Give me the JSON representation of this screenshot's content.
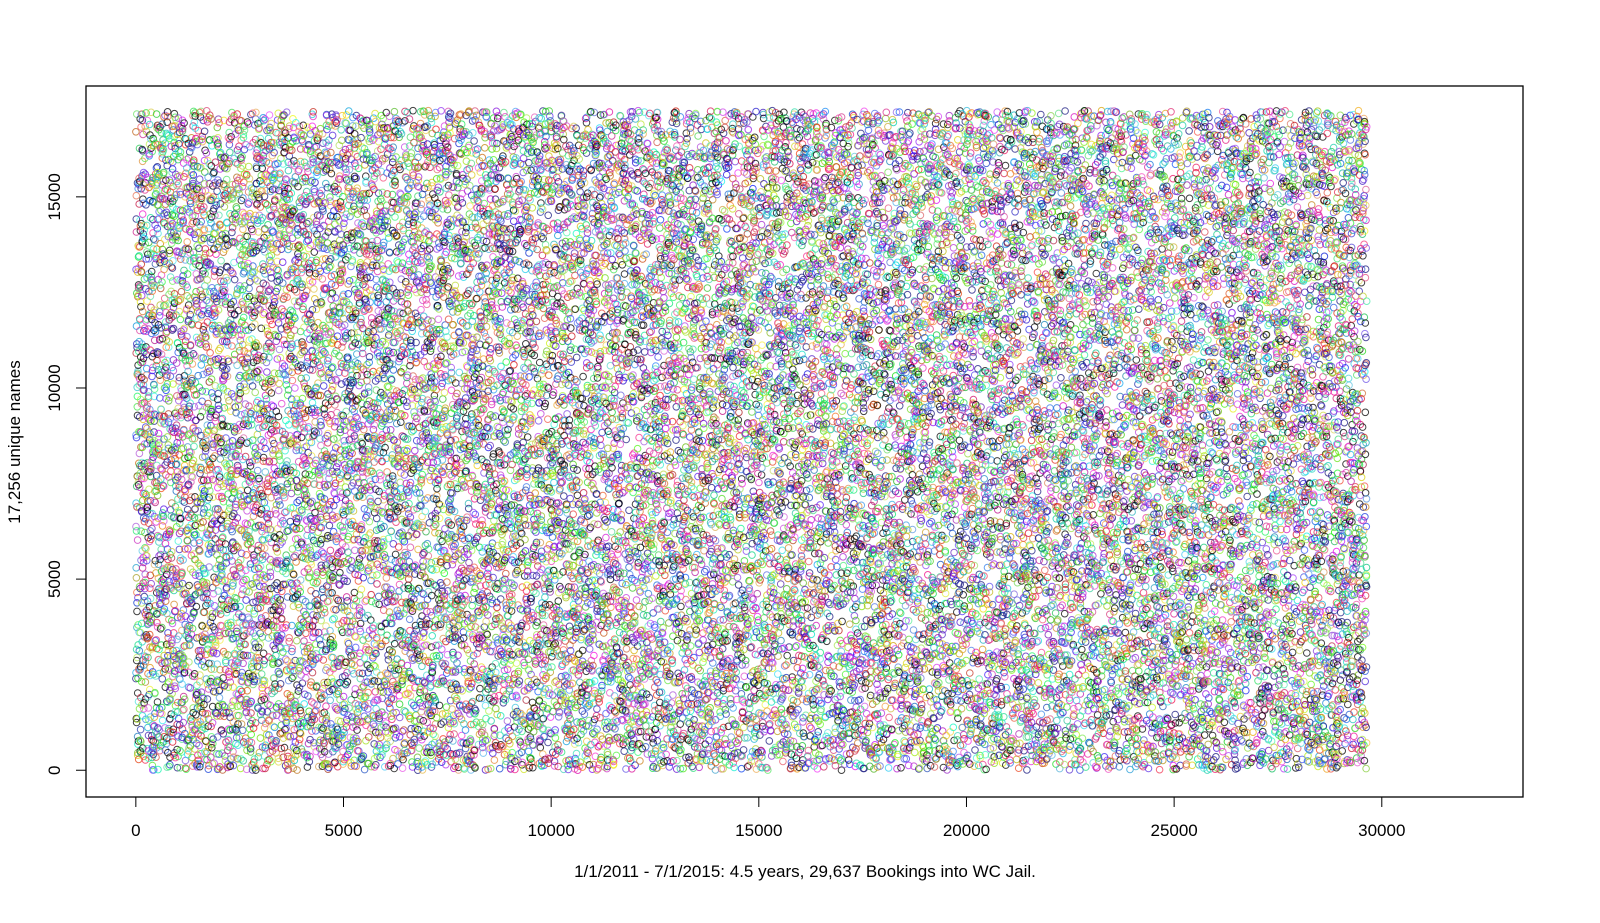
{
  "chart_data": {
    "type": "scatter",
    "title": "",
    "xlabel": "1/1/2011 - 7/1/2015: 4.5 years, 29,637 Bookings into WC Jail.",
    "ylabel": "17,256 unique names",
    "xlim": [
      -1200,
      33400
    ],
    "ylim": [
      -700,
      17900
    ],
    "x_ticks": [
      0,
      5000,
      10000,
      15000,
      20000,
      25000,
      30000
    ],
    "x_tick_labels": [
      "0",
      "5000",
      "10000",
      "15000",
      "20000",
      "25000",
      "30000"
    ],
    "y_ticks": [
      0,
      5000,
      10000,
      15000
    ],
    "y_tick_labels": [
      "0",
      "5000",
      "10000",
      "15000"
    ],
    "n_points": 29637,
    "y_max": 17256,
    "x_distribution": "one point per booking index 1-29637",
    "y_distribution": "scattered uniformly over 1-17256",
    "marker": "open circle",
    "colors": "random multicolor (rainbow hues, black, navy)",
    "grid": false,
    "legend": "none"
  }
}
